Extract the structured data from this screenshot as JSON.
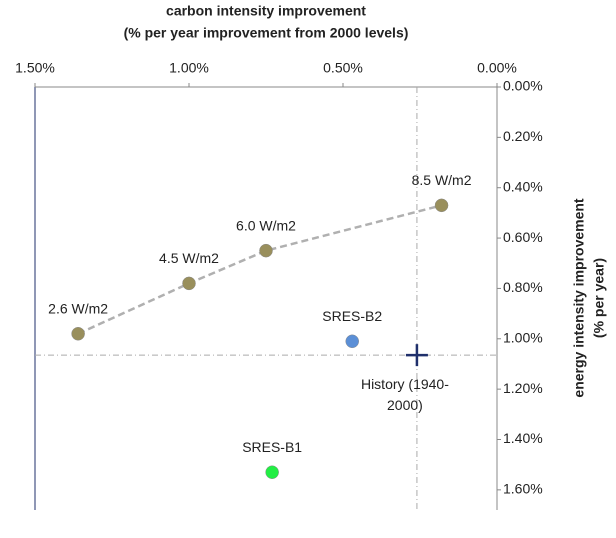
{
  "chart_data": {
    "type": "scatter",
    "x_title": [
      "carbon intensity improvement",
      "(% per year improvement from 2000 levels)"
    ],
    "y_title": [
      "energy intensity improvement",
      "(% per year)"
    ],
    "xlim": [
      1.5,
      0
    ],
    "ylim": [
      0,
      1.68
    ],
    "xticks": [
      {
        "value": 1.5,
        "label": "1.50%"
      },
      {
        "value": 1.0,
        "label": "1.00%"
      },
      {
        "value": 0.5,
        "label": "0.50%"
      },
      {
        "value": 0,
        "label": "0.00%"
      }
    ],
    "yticks": [
      {
        "value": 0,
        "label": "0.00%"
      },
      {
        "value": 0.2,
        "label": "0.20%"
      },
      {
        "value": 0.4,
        "label": "0.40%"
      },
      {
        "value": 0.6,
        "label": "0.60%"
      },
      {
        "value": 0.8,
        "label": "0.80%"
      },
      {
        "value": 1.0,
        "label": "1.00%"
      },
      {
        "value": 1.2,
        "label": "1.20%"
      },
      {
        "value": 1.4,
        "label": "1.40%"
      },
      {
        "value": 1.6,
        "label": "1.60%"
      }
    ],
    "series": [
      {
        "x": [
          1.36,
          1.0,
          0.75,
          0.18
        ],
        "values": [
          0.98,
          0.78,
          0.65,
          0.47
        ],
        "labels": [
          "2.6 W/m2",
          "4.5 W/m2",
          "6.0 W/m2",
          "8.5 W/m2"
        ],
        "color": "#998f5c",
        "line": "dashed",
        "line_color": "#b0b0b0"
      },
      {
        "x": [
          0.47
        ],
        "values": [
          1.01
        ],
        "labels": [
          "SRES-B2"
        ],
        "color": "#5b8fd6"
      },
      {
        "x": [
          0.73
        ],
        "values": [
          1.53
        ],
        "labels": [
          "SRES-B1"
        ],
        "color": "#22ee44"
      }
    ],
    "reference": {
      "x": 0.26,
      "y": 1.065,
      "label_lines": [
        "History (1940-",
        "2000)"
      ],
      "color": "#1f2f6b"
    }
  }
}
